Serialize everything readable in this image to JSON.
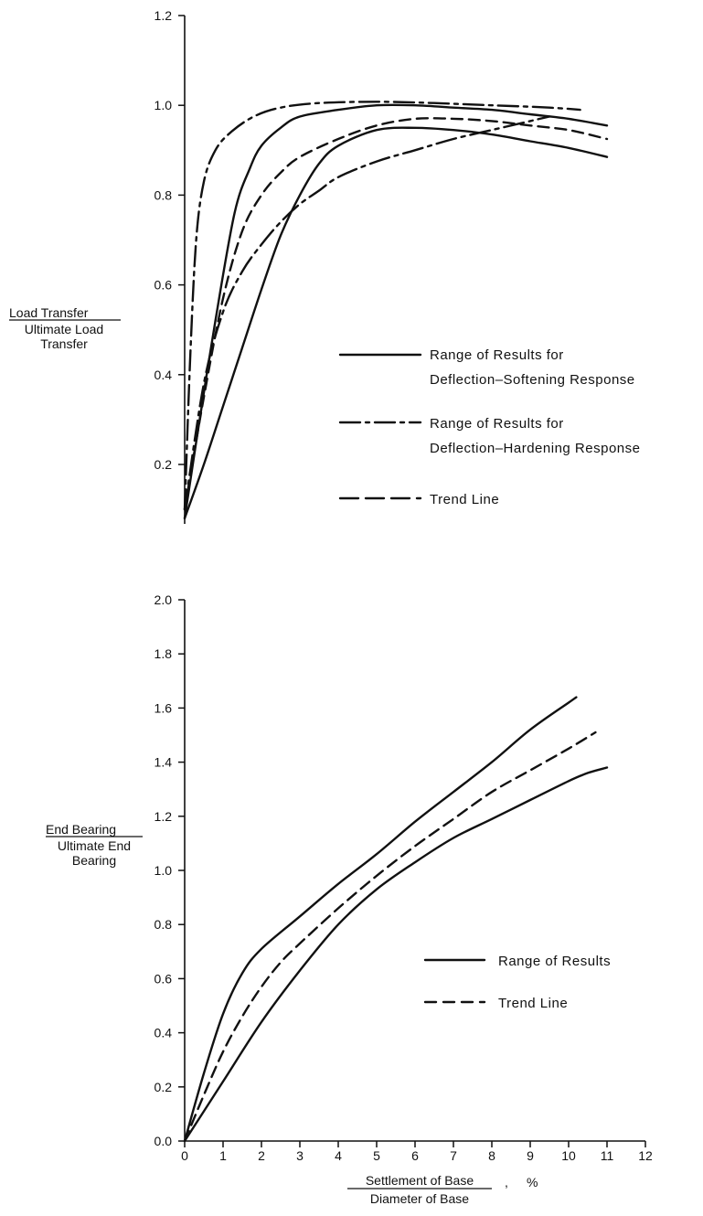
{
  "chart_data": [
    {
      "type": "line",
      "ylim": [
        0.1,
        1.2
      ],
      "yticks": [
        0.2,
        0.4,
        0.6,
        0.8,
        1.0,
        1.2
      ],
      "ytick_labels": [
        "0.2",
        "0.4",
        "0.6",
        "0.8",
        "1.0",
        "1.2"
      ],
      "ylabel_lines": [
        "Load Transfer",
        "Ultimate Load",
        "Transfer"
      ],
      "xlim": [
        0,
        12
      ],
      "legend": [
        {
          "style": "solid",
          "lines": [
            "Range of Results for",
            "Deflection–Softening Response"
          ]
        },
        {
          "style": "dashdot",
          "lines": [
            "Range of Results for",
            "Deflection–Hardening Response"
          ]
        },
        {
          "style": "dashed",
          "lines": [
            "Trend Line"
          ]
        }
      ],
      "series": [
        {
          "style": "solid",
          "x": [
            0,
            0.3,
            0.8,
            1.3,
            1.7,
            2.0,
            2.5,
            3.0,
            4.0,
            5.0,
            6.0,
            7.0,
            8.0,
            9.0,
            10.0,
            11.0
          ],
          "y": [
            0.08,
            0.25,
            0.52,
            0.76,
            0.86,
            0.91,
            0.95,
            0.975,
            0.99,
            1.0,
            1.0,
            0.995,
            0.99,
            0.98,
            0.97,
            0.955
          ]
        },
        {
          "style": "solid",
          "x": [
            0,
            0.5,
            1.0,
            1.5,
            2.0,
            2.5,
            3.0,
            3.5,
            4.0,
            5.0,
            6.0,
            7.0,
            8.0,
            9.0,
            10.0,
            11.0
          ],
          "y": [
            0.08,
            0.2,
            0.33,
            0.46,
            0.59,
            0.71,
            0.8,
            0.87,
            0.91,
            0.945,
            0.95,
            0.945,
            0.935,
            0.92,
            0.905,
            0.885
          ]
        },
        {
          "style": "dashdot",
          "x": [
            0,
            0.15,
            0.3,
            0.5,
            0.8,
            1.2,
            1.8,
            2.5,
            3.5,
            5.0,
            6.5,
            8.0,
            9.5,
            10.3
          ],
          "y": [
            0.1,
            0.45,
            0.7,
            0.83,
            0.9,
            0.94,
            0.975,
            0.995,
            1.005,
            1.008,
            1.005,
            1.0,
            0.995,
            0.99
          ]
        },
        {
          "style": "dashdot",
          "x": [
            0,
            0.5,
            1.0,
            1.5,
            2.0,
            2.5,
            3.0,
            3.5,
            4.0,
            5.0,
            6.0,
            7.0,
            8.0,
            9.0,
            9.5
          ],
          "y": [
            0.1,
            0.38,
            0.54,
            0.63,
            0.69,
            0.74,
            0.78,
            0.81,
            0.84,
            0.875,
            0.9,
            0.925,
            0.945,
            0.965,
            0.975
          ]
        },
        {
          "style": "dashed",
          "x": [
            0,
            0.5,
            1.0,
            1.5,
            2.0,
            2.5,
            3.0,
            4.0,
            5.0,
            6.0,
            7.0,
            8.0,
            9.0,
            10.0,
            11.0
          ],
          "y": [
            0.1,
            0.35,
            0.57,
            0.72,
            0.8,
            0.85,
            0.885,
            0.925,
            0.955,
            0.97,
            0.97,
            0.965,
            0.955,
            0.945,
            0.925
          ]
        }
      ]
    },
    {
      "type": "line",
      "ylim": [
        0,
        2.0
      ],
      "yticks": [
        0.0,
        0.2,
        0.4,
        0.6,
        0.8,
        1.0,
        1.2,
        1.4,
        1.6,
        1.8,
        2.0
      ],
      "ytick_labels": [
        "0.0",
        "0.2",
        "0.4",
        "0.6",
        "0.8",
        "1.0",
        "1.2",
        "1.4",
        "1.6",
        "1.8",
        "2.0"
      ],
      "ylabel_lines": [
        "End Bearing",
        "Ultimate End",
        "Bearing"
      ],
      "xlim": [
        0,
        12
      ],
      "xticks": [
        0,
        1,
        2,
        3,
        4,
        5,
        6,
        7,
        8,
        9,
        10,
        11,
        12
      ],
      "xtick_labels": [
        "0",
        "1",
        "2",
        "3",
        "4",
        "5",
        "6",
        "7",
        "8",
        "9",
        "10",
        "11",
        "12"
      ],
      "xlabel_numerator": "Settlement of Base",
      "xlabel_comma": ",",
      "xlabel_unit": "%",
      "xlabel_denominator": "Diameter of Base",
      "legend": [
        {
          "style": "solid",
          "lines": [
            "Range of Results"
          ]
        },
        {
          "style": "dashed",
          "lines": [
            "Trend Line"
          ]
        }
      ],
      "series": [
        {
          "style": "solid",
          "x": [
            0,
            0.5,
            1.0,
            1.5,
            2.0,
            3.0,
            4.0,
            5.0,
            6.0,
            7.0,
            8.0,
            9.0,
            10.0,
            10.2
          ],
          "y": [
            0,
            0.25,
            0.47,
            0.62,
            0.71,
            0.83,
            0.95,
            1.06,
            1.18,
            1.29,
            1.4,
            1.52,
            1.62,
            1.64
          ]
        },
        {
          "style": "solid",
          "x": [
            0,
            1.0,
            2.0,
            3.0,
            4.0,
            5.0,
            6.0,
            7.0,
            8.0,
            9.0,
            10.0,
            10.5,
            11.0
          ],
          "y": [
            0,
            0.22,
            0.44,
            0.63,
            0.8,
            0.93,
            1.03,
            1.12,
            1.19,
            1.26,
            1.33,
            1.36,
            1.38
          ]
        },
        {
          "style": "dashed",
          "x": [
            0,
            0.5,
            1.0,
            1.5,
            2.0,
            2.5,
            3.0,
            4.0,
            5.0,
            6.0,
            7.0,
            8.0,
            9.0,
            10.0,
            10.7
          ],
          "y": [
            0,
            0.17,
            0.33,
            0.46,
            0.57,
            0.66,
            0.73,
            0.86,
            0.98,
            1.09,
            1.19,
            1.29,
            1.37,
            1.45,
            1.51
          ]
        }
      ]
    }
  ]
}
